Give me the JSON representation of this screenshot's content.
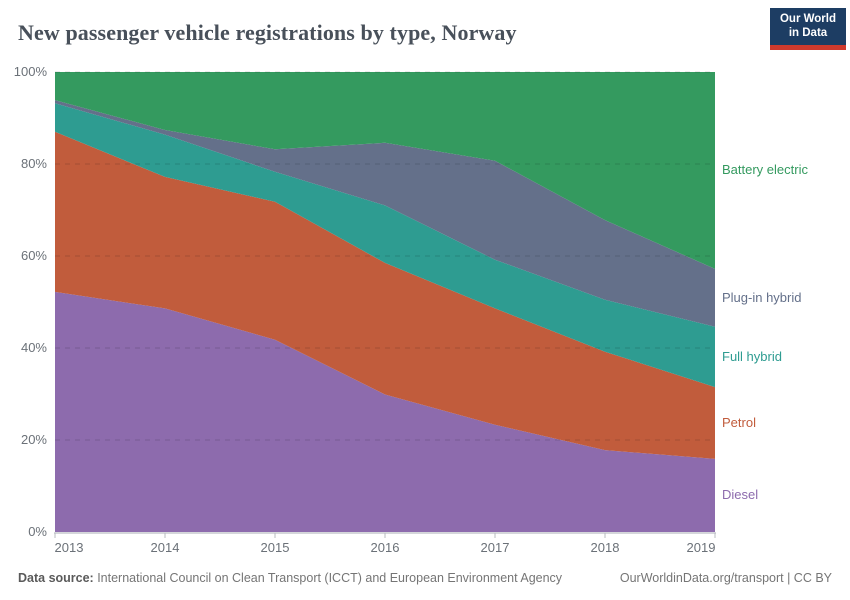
{
  "header": {
    "title": "New passenger vehicle registrations by type, Norway"
  },
  "logo": {
    "line1": "Our World",
    "line2": "in Data"
  },
  "chart_data": {
    "type": "area",
    "stacked": true,
    "title": "New passenger vehicle registrations by type, Norway",
    "unit": "%",
    "x": [
      2013,
      2014,
      2015,
      2016,
      2017,
      2018,
      2019
    ],
    "x_labels": [
      "2013",
      "2014",
      "2015",
      "2016",
      "2017",
      "2018",
      "2019"
    ],
    "series": [
      {
        "name": "Diesel",
        "color": "#8d6bad",
        "values": [
          52.2,
          48.6,
          41.8,
          29.9,
          23.3,
          17.8,
          15.9
        ]
      },
      {
        "name": "Petrol",
        "color": "#c15c3c",
        "values": [
          34.8,
          28.6,
          30.0,
          28.6,
          25.3,
          21.4,
          15.6
        ]
      },
      {
        "name": "Full hybrid",
        "color": "#2e9c91",
        "values": [
          6.2,
          9.2,
          6.5,
          12.5,
          10.6,
          11.3,
          13.1
        ]
      },
      {
        "name": "Plug-in hybrid",
        "color": "#64708a",
        "values": [
          0.7,
          1.0,
          4.9,
          13.6,
          21.5,
          17.3,
          12.6
        ]
      },
      {
        "name": "Battery electric",
        "color": "#349a5f",
        "values": [
          6.1,
          12.6,
          16.8,
          15.4,
          19.3,
          32.2,
          42.8
        ]
      }
    ],
    "ylim": [
      0,
      100
    ],
    "yticks": [
      {
        "value": 0,
        "label": "0%"
      },
      {
        "value": 20,
        "label": "20%"
      },
      {
        "value": 40,
        "label": "40%"
      },
      {
        "value": 60,
        "label": "60%"
      },
      {
        "value": 80,
        "label": "80%"
      },
      {
        "value": 100,
        "label": "100%"
      }
    ],
    "grid": true,
    "legend_position": "right"
  },
  "footer": {
    "source_label": "Data source:",
    "source_text": " International Council on Clean Transport (ICCT) and European Environment Agency",
    "right_text": "OurWorldinData.org/transport | CC BY"
  }
}
